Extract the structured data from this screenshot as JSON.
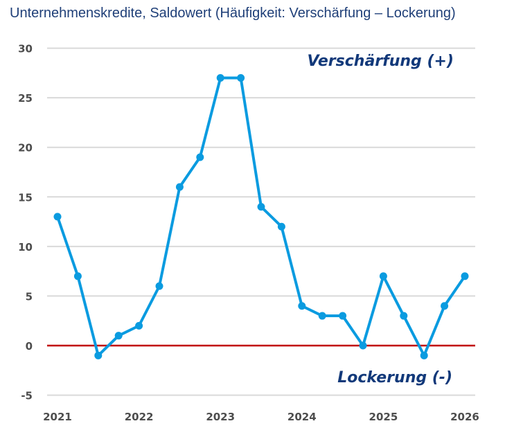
{
  "chart_data": {
    "type": "line",
    "title": "Unternehmenskredite, Saldowert (Häufigkeit: Verschärfung – Lockerung)",
    "xlabel": "",
    "ylabel": "",
    "x_tick_labels": [
      "2021",
      "2022",
      "2023",
      "2024",
      "2025",
      "2026"
    ],
    "y_ticks": [
      30,
      25,
      20,
      15,
      10,
      5,
      0,
      -5
    ],
    "ylim": [
      -5,
      30
    ],
    "xlim": [
      2021,
      2026
    ],
    "grid": true,
    "x": [
      2021.0,
      2021.25,
      2021.5,
      2021.75,
      2022.0,
      2022.25,
      2022.5,
      2022.75,
      2023.0,
      2023.25,
      2023.5,
      2023.75,
      2024.0,
      2024.25,
      2024.5,
      2024.75,
      2025.0,
      2025.25,
      2025.5,
      2025.75,
      2026.0
    ],
    "series": [
      {
        "values": [
          13,
          7,
          -1,
          1,
          2,
          6,
          16,
          19,
          27,
          27,
          14,
          12,
          4,
          3,
          3,
          0,
          7,
          3,
          -1,
          4,
          7
        ],
        "color": "#0a9be0"
      }
    ],
    "reference_line": {
      "y": 0,
      "color": "#c00000"
    },
    "annotations": {
      "top": "Verschärfung (+)",
      "bottom": "Lockerung (-)"
    }
  }
}
